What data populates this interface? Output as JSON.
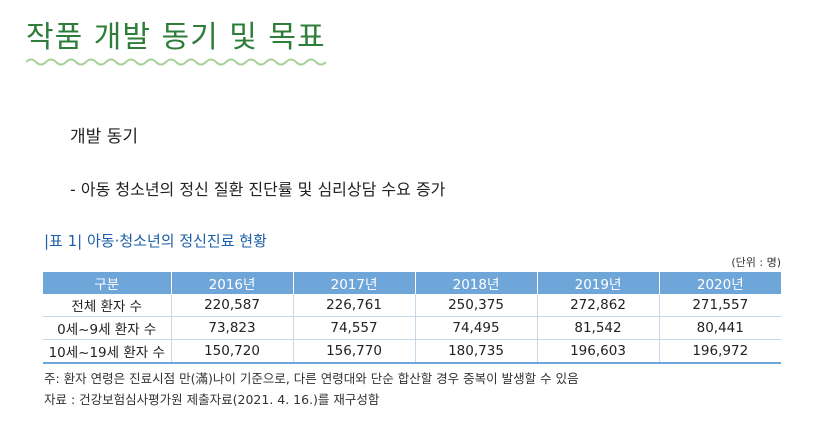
{
  "page": {
    "title": "작품 개발 동기 및 목표",
    "accent_color": "#2e7d3a",
    "wave_color": "#a8cf9a"
  },
  "section": {
    "heading": "개발 동기",
    "bullet": "-  아동 청소년의 정신 질환 진단률 및 심리상담 수요 증가"
  },
  "table": {
    "caption": "|표 1| 아동·청소년의 정신진료 현황",
    "unit": "(단위 : 명)",
    "header_color": "#6fa6d9",
    "columns": [
      "구분",
      "2016년",
      "2017년",
      "2018년",
      "2019년",
      "2020년"
    ],
    "rows": [
      [
        "전체 환자 수",
        "220,587",
        "226,761",
        "250,375",
        "272,862",
        "271,557"
      ],
      [
        "0세~9세 환자 수",
        "73,823",
        "74,557",
        "74,495",
        "81,542",
        "80,441"
      ],
      [
        "10세~19세 환자 수",
        "150,720",
        "156,770",
        "180,735",
        "196,603",
        "196,972"
      ]
    ],
    "note": "주: 환자 연령은 진료시점 만(滿)나이 기준으로, 다른 연령대와 단순 합산할 경우 중복이 발생할 수 있음",
    "source": "자료 : 건강보험심사평가원 제출자료(2021. 4. 16.)를 재구성함"
  }
}
